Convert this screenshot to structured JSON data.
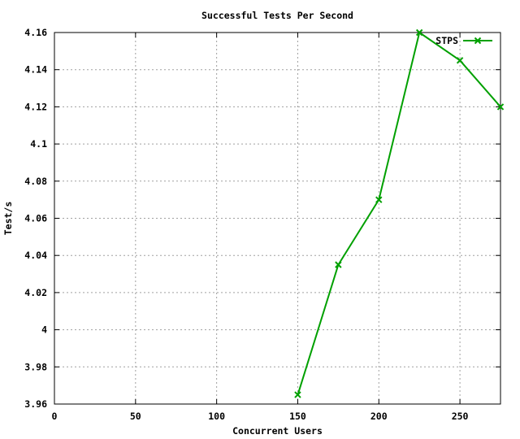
{
  "chart_data": {
    "type": "line",
    "title": "Successful Tests Per Second",
    "xlabel": "Concurrent Users",
    "ylabel": "Test/s",
    "xlim": [
      0,
      275
    ],
    "ylim": [
      3.96,
      4.16
    ],
    "xticks": [
      0,
      50,
      100,
      150,
      200,
      250
    ],
    "xtick_labels": [
      "0",
      "50",
      "100",
      "150",
      "200",
      "250"
    ],
    "yticks": [
      3.96,
      3.98,
      4.0,
      4.02,
      4.04,
      4.06,
      4.08,
      4.1,
      4.12,
      4.14,
      4.16
    ],
    "ytick_labels": [
      "3.96",
      "3.98",
      "4",
      "4.02",
      "4.04",
      "4.06",
      "4.08",
      "4.1",
      "4.12",
      "4.14",
      "4.16"
    ],
    "grid": true,
    "legend_position": "top-right",
    "series": [
      {
        "name": "STPS",
        "color": "#00a000",
        "marker": "x",
        "x": [
          150,
          175,
          200,
          225,
          250,
          275
        ],
        "y": [
          3.965,
          4.035,
          4.07,
          4.16,
          4.145,
          4.12
        ]
      }
    ]
  }
}
